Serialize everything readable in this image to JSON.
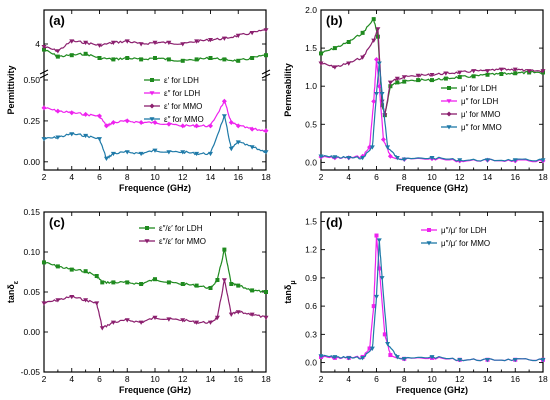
{
  "colors": {
    "green": "#1f8a1f",
    "magenta": "#ee22ee",
    "purple": "#8b1f6e",
    "blue": "#1f7aa8"
  },
  "chart_data": [
    {
      "panel": "(a)",
      "type": "line",
      "ylabel": "Permittivity",
      "xlabel": "Frequence (GHz)",
      "xlim": [
        2,
        18
      ],
      "x_ticks": [
        "2",
        "4",
        "6",
        "8",
        "10",
        "12",
        "14",
        "16",
        "18"
      ],
      "axis_break": "between 0.5 and ~3.5",
      "upper_y_ticks": [
        "4"
      ],
      "lower_ylim": [
        -0.05,
        0.5
      ],
      "lower_y_ticks": [
        "0.50",
        "0.25",
        "0.00"
      ],
      "legend": [
        "ε′ for LDH",
        "ε″ for LDH",
        "ε′ for MMO",
        "ε″ for MMO"
      ],
      "series": [
        {
          "name": "ε′ for LDH",
          "color": "green",
          "segment": "upper",
          "x": [
            2,
            3,
            4,
            5,
            6,
            7,
            8,
            9,
            10,
            11,
            12,
            13,
            14,
            15,
            16,
            17,
            18
          ],
          "y": [
            3.8,
            3.55,
            3.6,
            3.65,
            3.5,
            3.45,
            3.5,
            3.45,
            3.5,
            3.45,
            3.4,
            3.45,
            3.5,
            3.45,
            3.4,
            3.5,
            3.6
          ]
        },
        {
          "name": "ε′ for MMO",
          "color": "purple",
          "segment": "upper",
          "x": [
            2,
            3,
            4,
            5,
            6,
            7,
            8,
            9,
            10,
            11,
            12,
            13,
            14,
            15,
            16,
            17,
            18
          ],
          "y": [
            3.9,
            3.75,
            4.1,
            4.05,
            3.95,
            4.05,
            4.1,
            4.0,
            4.05,
            4.05,
            4.0,
            4.1,
            4.15,
            4.2,
            4.3,
            4.4,
            4.5
          ]
        },
        {
          "name": "ε″ for LDH",
          "color": "magenta",
          "segment": "lower",
          "x": [
            2,
            3,
            4,
            5,
            6,
            6.5,
            7,
            8,
            9,
            10,
            11,
            12,
            13,
            14,
            15,
            15.5,
            16,
            17,
            18
          ],
          "y": [
            0.33,
            0.31,
            0.3,
            0.29,
            0.28,
            0.22,
            0.24,
            0.25,
            0.24,
            0.24,
            0.23,
            0.22,
            0.22,
            0.22,
            0.37,
            0.24,
            0.22,
            0.2,
            0.19
          ]
        },
        {
          "name": "ε″ for MMO",
          "color": "blue",
          "segment": "lower",
          "x": [
            2,
            3,
            4,
            5,
            6,
            6.5,
            7,
            8,
            9,
            10,
            11,
            12,
            13,
            14,
            15,
            15.5,
            16,
            17,
            18
          ],
          "y": [
            0.14,
            0.15,
            0.17,
            0.16,
            0.14,
            0.02,
            0.05,
            0.06,
            0.05,
            0.07,
            0.06,
            0.06,
            0.05,
            0.05,
            0.28,
            0.08,
            0.12,
            0.09,
            0.06
          ]
        }
      ]
    },
    {
      "panel": "(b)",
      "type": "line",
      "ylabel": "Permeability",
      "xlabel": "Frequence (GHz)",
      "xlim": [
        2,
        18
      ],
      "ylim": [
        -0.1,
        2.0
      ],
      "x_ticks": [
        "2",
        "4",
        "6",
        "8",
        "10",
        "12",
        "14",
        "16",
        "18"
      ],
      "y_ticks": [
        "0.0",
        "0.5",
        "1.0",
        "1.5",
        "2.0"
      ],
      "legend": [
        "μ′ for LDH",
        "μ″ for LDH",
        "μ′ for MMO",
        "μ″ for MMO"
      ],
      "series": [
        {
          "name": "μ′ for LDH",
          "color": "green",
          "x": [
            2,
            3,
            4,
            5,
            5.8,
            6.1,
            6.4,
            6.6,
            7,
            7.5,
            8,
            9,
            10,
            11,
            12,
            13,
            14,
            15,
            16,
            17,
            18
          ],
          "y": [
            1.43,
            1.5,
            1.58,
            1.7,
            1.88,
            1.65,
            0.75,
            0.62,
            1.0,
            1.05,
            1.06,
            1.08,
            1.08,
            1.1,
            1.12,
            1.13,
            1.15,
            1.16,
            1.17,
            1.18,
            1.18
          ]
        },
        {
          "name": "μ′ for MMO",
          "color": "purple",
          "x": [
            2,
            3,
            4,
            5,
            5.8,
            6.1,
            6.4,
            6.6,
            7,
            7.5,
            8,
            9,
            10,
            11,
            12,
            13,
            14,
            15,
            16,
            17,
            18
          ],
          "y": [
            1.3,
            1.25,
            1.3,
            1.38,
            1.6,
            1.75,
            0.8,
            0.62,
            1.05,
            1.1,
            1.12,
            1.14,
            1.15,
            1.17,
            1.18,
            1.2,
            1.2,
            1.22,
            1.22,
            1.2,
            1.2
          ]
        },
        {
          "name": "μ″ for LDH",
          "color": "magenta",
          "x": [
            2,
            3,
            4,
            5,
            5.5,
            5.8,
            6.0,
            6.2,
            6.5,
            7,
            8,
            10,
            12,
            14,
            16,
            18
          ],
          "y": [
            0.07,
            0.06,
            0.06,
            0.08,
            0.2,
            0.8,
            1.35,
            1.0,
            0.3,
            0.08,
            0.04,
            0.05,
            0.02,
            0.03,
            0.02,
            0.02
          ]
        },
        {
          "name": "μ″ for MMO",
          "color": "blue",
          "x": [
            2,
            3,
            4,
            5,
            5.7,
            6.0,
            6.2,
            6.4,
            6.8,
            7.5,
            8,
            10,
            12,
            14,
            16,
            18
          ],
          "y": [
            0.08,
            0.07,
            0.06,
            0.06,
            0.2,
            0.9,
            1.3,
            0.9,
            0.2,
            0.06,
            0.04,
            0.06,
            0.03,
            0.03,
            0.03,
            0.03
          ]
        }
      ]
    },
    {
      "panel": "(c)",
      "type": "line",
      "ylabel": "tanδ_ε",
      "xlabel": "Frequence (GHz)",
      "xlim": [
        2,
        18
      ],
      "ylim": [
        -0.05,
        0.15
      ],
      "x_ticks": [
        "2",
        "4",
        "6",
        "8",
        "10",
        "12",
        "14",
        "16",
        "18"
      ],
      "y_ticks": [
        "-0.05",
        "0.00",
        "0.05",
        "0.10",
        "0.15"
      ],
      "legend": [
        "ε″/ε′ for LDH",
        "ε″/ε′ for MMO"
      ],
      "series": [
        {
          "name": "ε″/ε′ for LDH",
          "color": "green",
          "x": [
            2,
            3,
            4,
            5,
            5.8,
            6.2,
            7,
            8,
            9,
            10,
            11,
            12,
            13,
            14,
            14.5,
            15,
            15.5,
            16,
            17,
            18
          ],
          "y": [
            0.087,
            0.082,
            0.078,
            0.076,
            0.07,
            0.062,
            0.062,
            0.062,
            0.06,
            0.066,
            0.062,
            0.06,
            0.058,
            0.055,
            0.065,
            0.103,
            0.06,
            0.058,
            0.052,
            0.05
          ]
        },
        {
          "name": "ε″/ε′ for MMO",
          "color": "purple",
          "x": [
            2,
            3,
            4,
            5,
            5.8,
            6.2,
            7,
            8,
            9,
            10,
            11,
            12,
            13,
            14,
            14.5,
            15,
            15.5,
            16,
            17,
            18
          ],
          "y": [
            0.036,
            0.04,
            0.044,
            0.04,
            0.036,
            0.005,
            0.012,
            0.015,
            0.012,
            0.018,
            0.016,
            0.015,
            0.012,
            0.012,
            0.018,
            0.065,
            0.022,
            0.025,
            0.022,
            0.018
          ]
        }
      ]
    },
    {
      "panel": "(d)",
      "type": "line",
      "ylabel": "tanδ_μ",
      "xlabel": "Frequence (GHz)",
      "xlim": [
        2,
        18
      ],
      "ylim": [
        -0.1,
        1.6
      ],
      "x_ticks": [
        "2",
        "4",
        "6",
        "8",
        "10",
        "12",
        "14",
        "16",
        "18"
      ],
      "y_ticks": [
        "0.0",
        "0.3",
        "0.6",
        "0.9",
        "1.2",
        "1.5"
      ],
      "legend": [
        "μ″/μ′ for LDH",
        "μ″/μ′ for MMO"
      ],
      "series": [
        {
          "name": "μ″/μ′ for LDH",
          "color": "magenta",
          "x": [
            2,
            3,
            4,
            5,
            5.5,
            5.8,
            6.0,
            6.2,
            6.6,
            7,
            8,
            10,
            12,
            14,
            16,
            18
          ],
          "y": [
            0.06,
            0.05,
            0.05,
            0.06,
            0.15,
            0.6,
            1.35,
            1.0,
            0.3,
            0.08,
            0.04,
            0.05,
            0.03,
            0.03,
            0.03,
            0.03
          ]
        },
        {
          "name": "μ″/μ′ for MMO",
          "color": "blue",
          "x": [
            2,
            3,
            4,
            5,
            5.7,
            6.0,
            6.2,
            6.4,
            6.8,
            7.5,
            8,
            10,
            12,
            14,
            16,
            18
          ],
          "y": [
            0.07,
            0.06,
            0.05,
            0.05,
            0.15,
            0.7,
            1.3,
            0.9,
            0.2,
            0.06,
            0.04,
            0.06,
            0.03,
            0.03,
            0.03,
            0.03
          ]
        }
      ]
    }
  ]
}
